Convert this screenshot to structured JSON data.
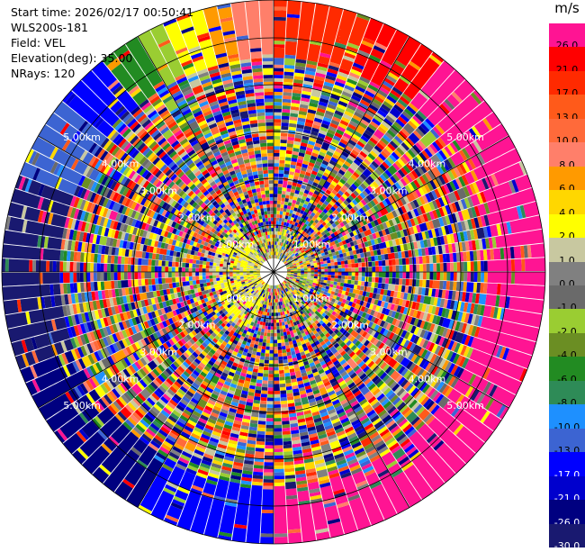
{
  "header": {
    "start_time": "Start time: 2026/02/17 00:50:41",
    "instrument": "WLS200s-181",
    "field": "Field: VEL",
    "elevation": "Elevation(deg): 35.00",
    "nrays": "NRays: 120"
  },
  "chart_data": {
    "type": "heatmap",
    "subtype": "polar PPI",
    "field": "VEL",
    "unit": "m/s",
    "rays": 120,
    "elevation_deg": 35.0,
    "range_rings_km": [
      1,
      2,
      3,
      4,
      5
    ],
    "max_range_km": 5.8,
    "ring_labels": [
      {
        "text": "1.00km",
        "angle_deg": 55
      },
      {
        "text": "1.00km",
        "angle_deg": 125
      },
      {
        "text": "1.00km",
        "angle_deg": 235
      },
      {
        "text": "1.00km",
        "angle_deg": 305
      },
      {
        "text": "2.00km",
        "angle_deg": 55
      },
      {
        "text": "2.00km",
        "angle_deg": 125
      },
      {
        "text": "2.00km",
        "angle_deg": 235
      },
      {
        "text": "2.00km",
        "angle_deg": 305
      },
      {
        "text": "3.00km",
        "angle_deg": 55
      },
      {
        "text": "3.00km",
        "angle_deg": 125
      },
      {
        "text": "3.00km",
        "angle_deg": 235
      },
      {
        "text": "3.00km",
        "angle_deg": 305
      },
      {
        "text": "4.00km",
        "angle_deg": 55
      },
      {
        "text": "4.00km",
        "angle_deg": 125
      },
      {
        "text": "4.00km",
        "angle_deg": 235
      },
      {
        "text": "4.00km",
        "angle_deg": 305
      },
      {
        "text": "5.00km",
        "angle_deg": 55
      },
      {
        "text": "5.00km",
        "angle_deg": 125
      },
      {
        "text": "5.00km",
        "angle_deg": 235
      },
      {
        "text": "5.00km",
        "angle_deg": 305
      }
    ],
    "colorbar": {
      "title": "m/s",
      "levels": [
        {
          "label": "26.0",
          "color": "#ff1493"
        },
        {
          "label": "21.0",
          "color": "#ff0000"
        },
        {
          "label": "17.0",
          "color": "#ff2a00"
        },
        {
          "label": "13.0",
          "color": "#ff5a1a"
        },
        {
          "label": "10.0",
          "color": "#ff6a3a"
        },
        {
          "label": "8.0",
          "color": "#ff7f6a"
        },
        {
          "label": "6.0",
          "color": "#ff9a00"
        },
        {
          "label": "4.0",
          "color": "#ffd700"
        },
        {
          "label": "2.0",
          "color": "#ffff00"
        },
        {
          "label": "1.0",
          "color": "#c8c8a0"
        },
        {
          "label": "0.0",
          "color": "#808080"
        },
        {
          "label": "-1.0",
          "color": "#6a6a6a"
        },
        {
          "label": "-2.0",
          "color": "#9acd32"
        },
        {
          "label": "-4.0",
          "color": "#6b8e23"
        },
        {
          "label": "-6.0",
          "color": "#228b22"
        },
        {
          "label": "-8.0",
          "color": "#2e8b57"
        },
        {
          "label": "-10.0",
          "color": "#1e90ff"
        },
        {
          "label": "-13.0",
          "color": "#3c64d2"
        },
        {
          "label": "-17.0",
          "color": "#0000ff"
        },
        {
          "label": "-21.0",
          "color": "#0000cd"
        },
        {
          "label": "-26.0",
          "color": "#000080"
        },
        {
          "label": "-30.0",
          "color": "#191970"
        }
      ]
    },
    "outer_ring_sectors": [
      {
        "from_deg": 337,
        "to_deg": 345,
        "color": "#ffff00"
      },
      {
        "from_deg": 345,
        "to_deg": 352,
        "color": "#ff9a00"
      },
      {
        "from_deg": 352,
        "to_deg": 360,
        "color": "#ff7f6a"
      },
      {
        "from_deg": 0,
        "to_deg": 20,
        "color": "#ff2a00"
      },
      {
        "from_deg": 20,
        "to_deg": 40,
        "color": "#ff0000"
      },
      {
        "from_deg": 40,
        "to_deg": 95,
        "color": "#ff1493"
      },
      {
        "from_deg": 95,
        "to_deg": 130,
        "color": "#ff1493"
      },
      {
        "from_deg": 130,
        "to_deg": 160,
        "color": "#ff1493"
      },
      {
        "from_deg": 160,
        "to_deg": 180,
        "color": "#ff1493"
      },
      {
        "from_deg": 180,
        "to_deg": 210,
        "color": "#0000ff"
      },
      {
        "from_deg": 210,
        "to_deg": 250,
        "color": "#000080"
      },
      {
        "from_deg": 250,
        "to_deg": 290,
        "color": "#191970"
      },
      {
        "from_deg": 290,
        "to_deg": 310,
        "color": "#3c64d2"
      },
      {
        "from_deg": 310,
        "to_deg": 322,
        "color": "#0000ff"
      },
      {
        "from_deg": 322,
        "to_deg": 330,
        "color": "#228b22"
      },
      {
        "from_deg": 330,
        "to_deg": 337,
        "color": "#9acd32"
      }
    ]
  }
}
